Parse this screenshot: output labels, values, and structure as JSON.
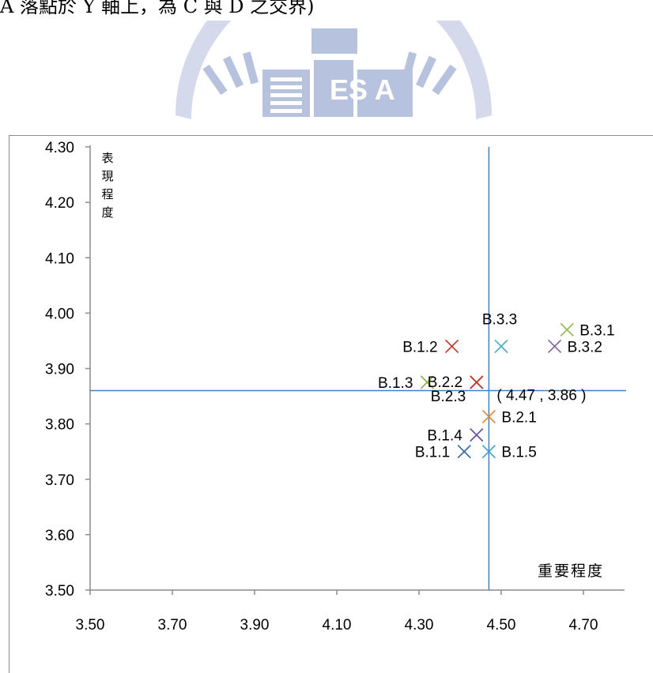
{
  "page": {
    "caption_fragment": "A 落點於 Y 軸上，為 C 與 D 之交界)"
  },
  "watermark": {
    "text": "ES A",
    "color": "#b7c2df"
  },
  "chart_data": {
    "type": "scatter",
    "xlabel": "重要程度",
    "ylabel": "表現程度",
    "ylabel_chars": [
      "表",
      "現",
      "程",
      "度"
    ],
    "xlim": [
      3.5,
      4.8
    ],
    "ylim": [
      3.5,
      4.3
    ],
    "xticks": [
      "3.50",
      "3.70",
      "3.90",
      "4.10",
      "4.30",
      "4.50",
      "4.70"
    ],
    "xtick_values": [
      3.5,
      3.7,
      3.9,
      4.1,
      4.3,
      4.5,
      4.7
    ],
    "yticks": [
      "3.50",
      "3.60",
      "3.70",
      "3.80",
      "3.90",
      "4.00",
      "4.10",
      "4.20",
      "4.30"
    ],
    "ytick_values": [
      3.5,
      3.6,
      3.7,
      3.8,
      3.9,
      4.0,
      4.1,
      4.2,
      4.3
    ],
    "crosshair": {
      "x": 4.47,
      "y": 3.86,
      "label": "( 4.47 , 3.86 )",
      "color": "#4a7ebb"
    },
    "points": [
      {
        "label": "B.1.1",
        "x": 4.41,
        "y": 3.75,
        "color": "#2e6b9e",
        "label_side": "left"
      },
      {
        "label": "B.1.2",
        "x": 4.38,
        "y": 3.94,
        "color": "#c0392b",
        "label_side": "left"
      },
      {
        "label": "B.1.3",
        "x": 4.32,
        "y": 3.875,
        "color": "#8db344",
        "label_side": "left"
      },
      {
        "label": "B.1.4",
        "x": 4.44,
        "y": 3.78,
        "color": "#6b4fa0",
        "label_side": "left"
      },
      {
        "label": "B.1.5",
        "x": 4.47,
        "y": 3.75,
        "color": "#3aa6c6",
        "label_side": "right"
      },
      {
        "label": "B.2.1",
        "x": 4.47,
        "y": 3.813,
        "color": "#e08a3c",
        "label_side": "right"
      },
      {
        "label": "B.2.2",
        "x": 4.44,
        "y": 3.875,
        "color": "#c0392b",
        "label_side": "mid-left"
      },
      {
        "label": "B.2.3",
        "x": 4.44,
        "y": 3.875,
        "color": "#c0392b",
        "label_side": "below-left"
      },
      {
        "label": "B.3.1",
        "x": 4.66,
        "y": 3.97,
        "color": "#9bbb59",
        "label_side": "right"
      },
      {
        "label": "B.3.2",
        "x": 4.63,
        "y": 3.94,
        "color": "#8064a2",
        "label_side": "right"
      },
      {
        "label": "B.3.3",
        "x": 4.5,
        "y": 3.94,
        "color": "#4bacc6",
        "label_side": "above"
      }
    ]
  }
}
